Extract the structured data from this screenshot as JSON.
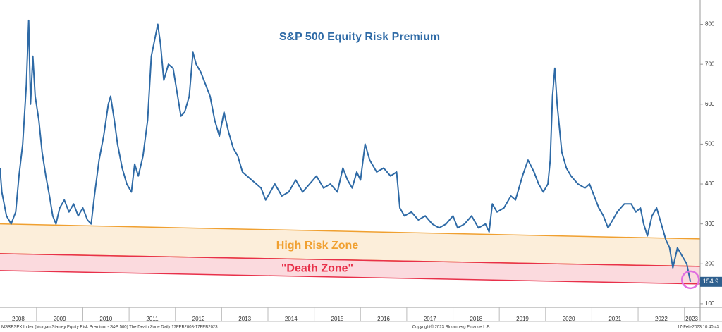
{
  "chart_data": {
    "type": "line",
    "title": "S&P 500 Equity Risk Premium",
    "series": [
      {
        "name": "MSRPSPX Index",
        "color": "#2e6aa6",
        "x": [
          2008.21,
          2008.25,
          2008.35,
          2008.45,
          2008.55,
          2008.62,
          2008.7,
          2008.78,
          2008.83,
          2008.87,
          2008.92,
          2008.97,
          2009.05,
          2009.12,
          2009.2,
          2009.28,
          2009.35,
          2009.42,
          2009.5,
          2009.6,
          2009.7,
          2009.8,
          2009.9,
          2010.0,
          2010.1,
          2010.18,
          2010.25,
          2010.35,
          2010.45,
          2010.55,
          2010.6,
          2010.68,
          2010.75,
          2010.85,
          2010.95,
          2011.05,
          2011.12,
          2011.2,
          2011.3,
          2011.4,
          2011.48,
          2011.55,
          2011.62,
          2011.68,
          2011.75,
          2011.85,
          2011.95,
          2012.05,
          2012.12,
          2012.2,
          2012.3,
          2012.38,
          2012.45,
          2012.55,
          2012.65,
          2012.75,
          2012.85,
          2012.95,
          2013.05,
          2013.15,
          2013.25,
          2013.35,
          2013.45,
          2013.55,
          2013.65,
          2013.75,
          2013.85,
          2013.95,
          2014.05,
          2014.15,
          2014.3,
          2014.45,
          2014.6,
          2014.75,
          2014.9,
          2015.05,
          2015.2,
          2015.35,
          2015.5,
          2015.62,
          2015.72,
          2015.82,
          2015.92,
          2016.0,
          2016.1,
          2016.2,
          2016.35,
          2016.5,
          2016.65,
          2016.78,
          2016.85,
          2016.95,
          2017.1,
          2017.25,
          2017.4,
          2017.55,
          2017.7,
          2017.85,
          2018.0,
          2018.1,
          2018.25,
          2018.4,
          2018.55,
          2018.7,
          2018.78,
          2018.85,
          2018.95,
          2019.1,
          2019.25,
          2019.35,
          2019.5,
          2019.62,
          2019.75,
          2019.85,
          2019.95,
          2020.05,
          2020.1,
          2020.15,
          2020.2,
          2020.25,
          2020.35,
          2020.45,
          2020.55,
          2020.7,
          2020.85,
          2020.95,
          2021.05,
          2021.15,
          2021.25,
          2021.35,
          2021.45,
          2021.55,
          2021.7,
          2021.85,
          2021.95,
          2022.05,
          2022.12,
          2022.2,
          2022.3,
          2022.4,
          2022.5,
          2022.6,
          2022.68,
          2022.75,
          2022.85,
          2022.95,
          2023.05,
          2023.13
        ],
        "values": [
          440,
          380,
          320,
          300,
          330,
          420,
          500,
          650,
          810,
          600,
          720,
          620,
          560,
          480,
          420,
          370,
          320,
          300,
          340,
          360,
          330,
          350,
          320,
          340,
          310,
          300,
          370,
          460,
          520,
          600,
          620,
          560,
          500,
          440,
          400,
          380,
          450,
          420,
          470,
          560,
          720,
          760,
          800,
          750,
          660,
          700,
          690,
          620,
          570,
          580,
          620,
          730,
          700,
          680,
          650,
          620,
          560,
          520,
          580,
          530,
          490,
          470,
          430,
          420,
          410,
          400,
          390,
          360,
          380,
          400,
          370,
          380,
          410,
          380,
          400,
          420,
          390,
          400,
          380,
          440,
          410,
          390,
          430,
          410,
          500,
          460,
          430,
          440,
          420,
          430,
          340,
          320,
          330,
          310,
          320,
          300,
          290,
          300,
          320,
          290,
          300,
          320,
          290,
          300,
          280,
          350,
          330,
          340,
          370,
          360,
          420,
          460,
          430,
          400,
          380,
          400,
          460,
          620,
          690,
          600,
          480,
          440,
          420,
          400,
          390,
          400,
          370,
          340,
          320,
          290,
          310,
          330,
          350,
          350,
          330,
          340,
          300,
          270,
          320,
          340,
          300,
          260,
          240,
          190,
          240,
          220,
          200,
          154.9
        ]
      }
    ],
    "zones": [
      {
        "text": "High Risk Zone",
        "color": "#f0a030",
        "upper": [
          300,
          262.5
        ],
        "lower": [
          225.4,
          193.6
        ]
      },
      {
        "text": "\"Death Zone\"",
        "color": "#e8304a",
        "upper": [
          225.4,
          193.6
        ],
        "lower": [
          183,
          149.5
        ]
      }
    ],
    "xlim": [
      2008.21,
      2023.34
    ],
    "xticks": [
      2008,
      2009,
      2010,
      2011,
      2012,
      2013,
      2014,
      2015,
      2016,
      2017,
      2018,
      2019,
      2020,
      2021,
      2022,
      2023
    ],
    "ylim": [
      91,
      861
    ],
    "yticks": [
      100,
      200,
      300,
      400,
      500,
      600,
      700,
      800
    ],
    "footer_left": "MSRPSPX Index (Morgan Stanley Equity Risk Premium - S&P 500) The Death Zone  Daily 17FEB2008-17FEB2023",
    "footer_center": "Copyright© 2023 Bloomberg Finance L.P.",
    "footer_right": "17-Feb-2023 10:40:43"
  }
}
